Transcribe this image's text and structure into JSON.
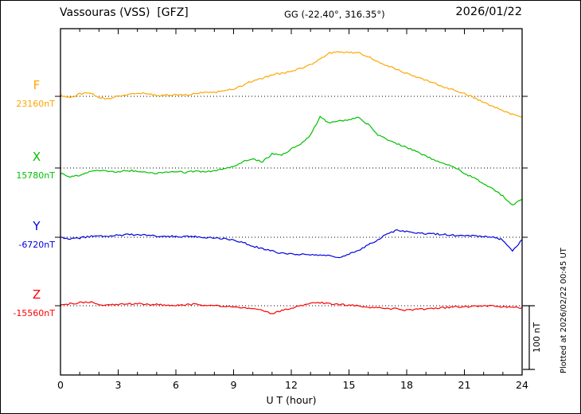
{
  "chart_data": {
    "type": "line",
    "title": "Vassouras (VSS)  [GFZ]",
    "subtitle": "GG (-22.40°, 316.35°)",
    "date": "2026/01/22",
    "xlabel": "U T (hour)",
    "x_range_hours": [
      0,
      24
    ],
    "x_ticks": [
      0,
      3,
      6,
      9,
      12,
      15,
      18,
      21,
      24
    ],
    "x_step_hours": 0.5,
    "grid": "dotted horizontal baseline per series",
    "scale_bar": {
      "label": "100 nT",
      "nT": 100
    },
    "plotted_note": "Plotted at 2026/02/22 00:45 UT",
    "series": [
      {
        "name": "F",
        "label": "F",
        "base_label": "23160nT",
        "base_nT": 23160,
        "color": "#ffa500",
        "offsets_nT": [
          2,
          -3,
          4,
          6,
          -2,
          -4,
          0,
          3,
          6,
          4,
          1,
          2,
          3,
          2,
          4,
          6,
          6,
          8,
          12,
          18,
          24,
          28,
          34,
          36,
          40,
          44,
          50,
          58,
          68,
          70,
          69,
          68,
          62,
          55,
          48,
          42,
          36,
          30,
          25,
          20,
          14,
          10,
          4,
          -2,
          -10,
          -16,
          -22,
          -28,
          -34
        ]
      },
      {
        "name": "X",
        "label": "X",
        "base_label": "15780nT",
        "base_nT": 15780,
        "color": "#00c000",
        "offsets_nT": [
          -8,
          -14,
          -12,
          -6,
          -4,
          -6,
          -6,
          -4,
          -5,
          -8,
          -9,
          -7,
          -6,
          -7,
          -5,
          -6,
          -4,
          -2,
          2,
          10,
          14,
          10,
          22,
          20,
          30,
          38,
          52,
          80,
          70,
          74,
          76,
          80,
          68,
          52,
          44,
          38,
          32,
          26,
          18,
          12,
          6,
          0,
          -8,
          -16,
          -24,
          -34,
          -44,
          -58,
          -48
        ]
      },
      {
        "name": "Y",
        "label": "Y",
        "base_label": "-6720nT",
        "base_nT": -6720,
        "color": "#0000e0",
        "offsets_nT": [
          0,
          -2,
          -1,
          1,
          2,
          2,
          3,
          4,
          4,
          3,
          2,
          2,
          1,
          1,
          1,
          0,
          -1,
          -2,
          -4,
          -8,
          -14,
          -18,
          -22,
          -25,
          -26,
          -27,
          -27,
          -28,
          -29,
          -32,
          -26,
          -20,
          -12,
          -4,
          6,
          11,
          9,
          7,
          6,
          5,
          4,
          3,
          3,
          2,
          1,
          0,
          -4,
          -22,
          -4
        ]
      },
      {
        "name": "Z",
        "label": "Z",
        "base_label": "-15560nT",
        "base_nT": -15560,
        "color": "#ff0000",
        "offsets_nT": [
          2,
          3,
          5,
          6,
          2,
          1,
          2,
          3,
          3,
          2,
          2,
          1,
          1,
          2,
          2,
          1,
          0,
          -1,
          -2,
          -3,
          -4,
          -8,
          -12,
          -8,
          -4,
          0,
          4,
          5,
          3,
          2,
          1,
          0,
          -2,
          -3,
          -4,
          -5,
          -7,
          -6,
          -5,
          -4,
          -3,
          -2,
          -2,
          -1,
          0,
          -1,
          -2,
          -3,
          -3
        ]
      }
    ]
  }
}
